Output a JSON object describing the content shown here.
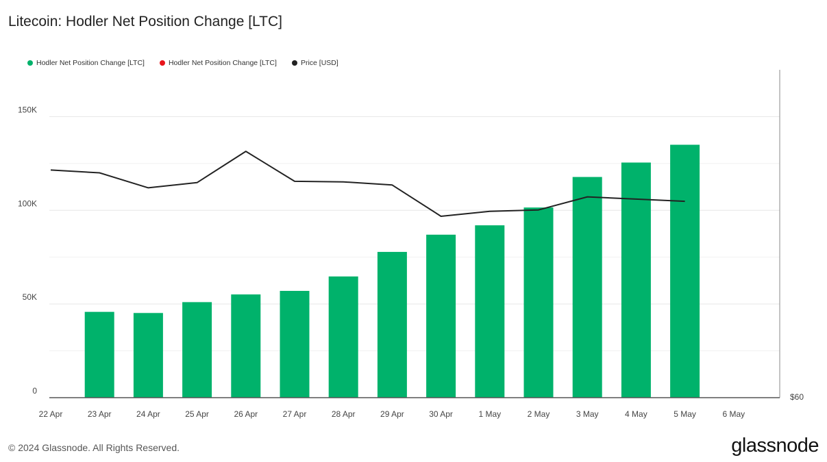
{
  "title": "Litecoin: Hodler Net Position Change [LTC]",
  "legend": [
    {
      "label": "Hodler Net Position Change [LTC]",
      "color": "#00b26b"
    },
    {
      "label": "Hodler Net Position Change [LTC]",
      "color": "#e8151b"
    },
    {
      "label": "Price [USD]",
      "color": "#222222"
    }
  ],
  "footer": "© 2024 Glassnode. All Rights Reserved.",
  "brand": "glassnode",
  "chart_data": {
    "type": "bar",
    "categories": [
      "22 Apr",
      "23 Apr",
      "24 Apr",
      "25 Apr",
      "26 Apr",
      "27 Apr",
      "28 Apr",
      "29 Apr",
      "30 Apr",
      "1 May",
      "2 May",
      "3 May",
      "4 May",
      "5 May",
      "6 May"
    ],
    "series": [
      {
        "name": "Hodler Net Position Change [LTC]",
        "type": "bar",
        "color": "#00b26b",
        "values": [
          null,
          45800,
          45200,
          51000,
          55100,
          57000,
          64700,
          77800,
          87000,
          92000,
          101500,
          117800,
          125500,
          135000,
          null
        ]
      },
      {
        "name": "Price [USD]",
        "type": "line",
        "color": "#222222",
        "values": [
          121500,
          120000,
          112000,
          114800,
          131500,
          115500,
          115200,
          113500,
          96800,
          99500,
          100200,
          107200,
          106000,
          104800,
          null
        ]
      }
    ],
    "y_ticks": [
      {
        "value": 0,
        "label": "0"
      },
      {
        "value": 50000,
        "label": "50K"
      },
      {
        "value": 100000,
        "label": "100K"
      },
      {
        "value": 150000,
        "label": "150K"
      }
    ],
    "ylim": [
      0,
      175000
    ],
    "y2_label": "$60",
    "grid": true,
    "legend_position": "top-left"
  }
}
